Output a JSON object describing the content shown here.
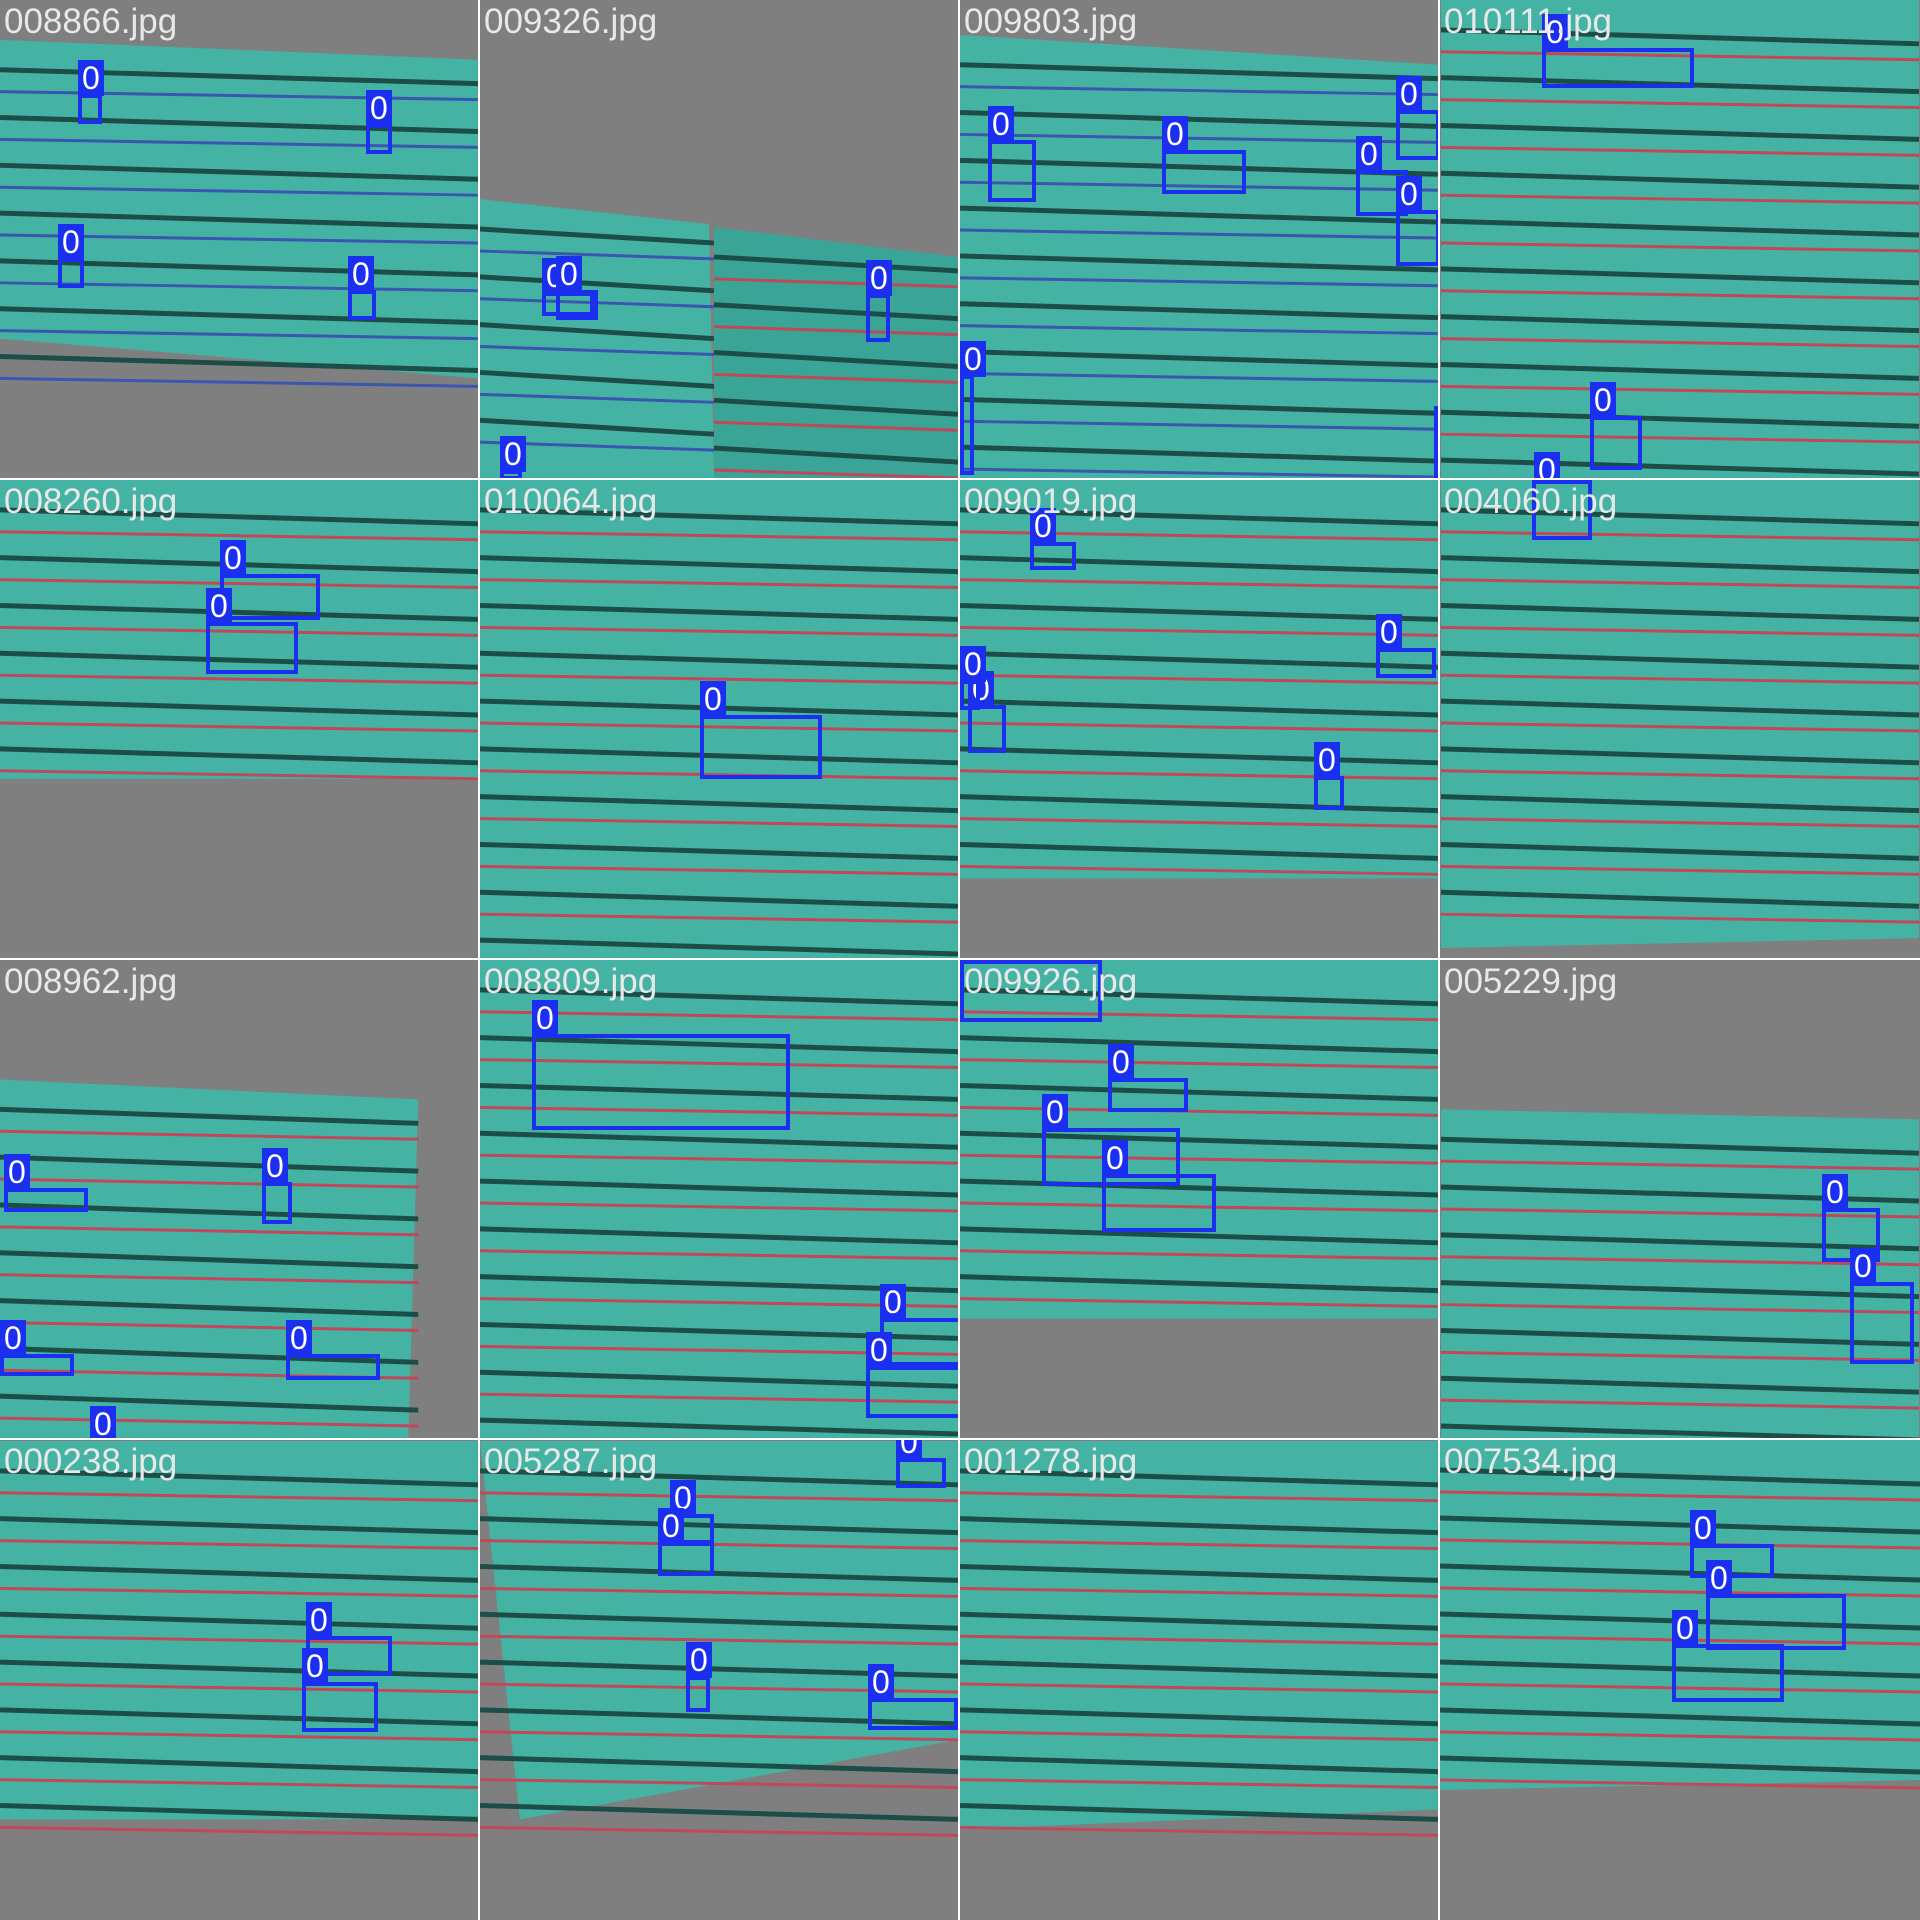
{
  "mosaic": {
    "background_color": "#ffffff",
    "pad_color": "#7f7f7f",
    "box_color": "#1a2ff0",
    "tiles": [
      {
        "filename": "008866.jpg",
        "boxes": [
          {
            "label": "0"
          },
          {
            "label": "0"
          },
          {
            "label": "0"
          },
          {
            "label": "0"
          }
        ]
      },
      {
        "filename": "009326.jpg",
        "boxes": [
          {
            "label": "0"
          },
          {
            "label": "0"
          },
          {
            "label": "0"
          },
          {
            "label": "0"
          }
        ]
      },
      {
        "filename": "009803.jpg",
        "boxes": [
          {
            "label": "0"
          },
          {
            "label": "0"
          },
          {
            "label": "0"
          },
          {
            "label": "0"
          },
          {
            "label": "0"
          },
          {
            "label": "0"
          },
          {
            "label": "0"
          }
        ]
      },
      {
        "filename": "010111.jpg",
        "boxes": [
          {
            "label": "0"
          },
          {
            "label": "0"
          },
          {
            "label": "0"
          }
        ]
      },
      {
        "filename": "008260.jpg",
        "boxes": [
          {
            "label": "0"
          },
          {
            "label": "0"
          }
        ]
      },
      {
        "filename": "010064.jpg",
        "boxes": [
          {
            "label": "0"
          }
        ]
      },
      {
        "filename": "009019.jpg",
        "boxes": [
          {
            "label": "0"
          },
          {
            "label": "0"
          },
          {
            "label": "0"
          },
          {
            "label": "0"
          },
          {
            "label": "0"
          }
        ]
      },
      {
        "filename": "004060.jpg",
        "boxes": [
          {
            "label": "0"
          }
        ]
      },
      {
        "filename": "008962.jpg",
        "boxes": [
          {
            "label": "0"
          },
          {
            "label": "0"
          },
          {
            "label": "0"
          },
          {
            "label": "0"
          },
          {
            "label": "0"
          }
        ]
      },
      {
        "filename": "008809.jpg",
        "boxes": [
          {
            "label": "0"
          },
          {
            "label": "0"
          },
          {
            "label": "0"
          }
        ]
      },
      {
        "filename": "009926.jpg",
        "boxes": [
          {
            "label": "0"
          },
          {
            "label": "0"
          },
          {
            "label": "0"
          },
          {
            "label": "0"
          }
        ]
      },
      {
        "filename": "005229.jpg",
        "boxes": [
          {
            "label": "0"
          },
          {
            "label": "0"
          }
        ]
      },
      {
        "filename": "000238.jpg",
        "boxes": [
          {
            "label": "0"
          },
          {
            "label": "0"
          }
        ]
      },
      {
        "filename": "005287.jpg",
        "boxes": [
          {
            "label": "0"
          },
          {
            "label": "0"
          },
          {
            "label": "0"
          },
          {
            "label": "0"
          },
          {
            "label": "0"
          }
        ]
      },
      {
        "filename": "001278.jpg",
        "boxes": []
      },
      {
        "filename": "007534.jpg",
        "boxes": [
          {
            "label": "0"
          },
          {
            "label": "0"
          },
          {
            "label": "0"
          }
        ]
      }
    ]
  }
}
